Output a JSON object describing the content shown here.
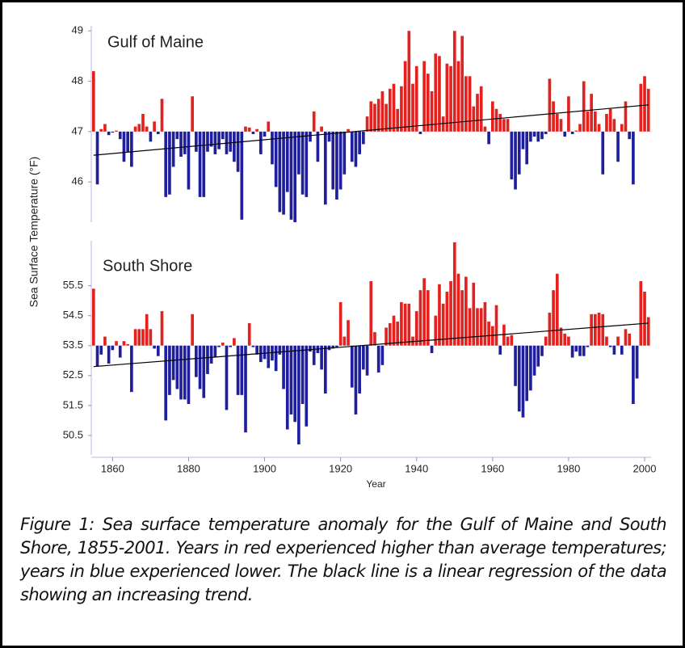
{
  "chart_data": [
    {
      "type": "bar",
      "title": "Gulf of Maine",
      "ylabel": "Sea Surface Temperature (°F)",
      "x": [
        1855,
        1856,
        1857,
        1858,
        1859,
        1860,
        1861,
        1862,
        1863,
        1864,
        1865,
        1866,
        1867,
        1868,
        1869,
        1870,
        1871,
        1872,
        1873,
        1874,
        1875,
        1876,
        1877,
        1878,
        1879,
        1880,
        1881,
        1882,
        1883,
        1884,
        1885,
        1886,
        1887,
        1888,
        1889,
        1890,
        1891,
        1892,
        1893,
        1894,
        1895,
        1896,
        1897,
        1898,
        1899,
        1900,
        1901,
        1902,
        1903,
        1904,
        1905,
        1906,
        1907,
        1908,
        1909,
        1910,
        1911,
        1912,
        1913,
        1914,
        1915,
        1916,
        1917,
        1918,
        1919,
        1920,
        1921,
        1922,
        1923,
        1924,
        1925,
        1926,
        1927,
        1928,
        1929,
        1930,
        1931,
        1932,
        1933,
        1934,
        1935,
        1936,
        1937,
        1938,
        1939,
        1940,
        1941,
        1942,
        1943,
        1944,
        1945,
        1946,
        1947,
        1948,
        1949,
        1950,
        1951,
        1952,
        1953,
        1954,
        1955,
        1956,
        1957,
        1958,
        1959,
        1960,
        1961,
        1962,
        1963,
        1964,
        1965,
        1966,
        1967,
        1968,
        1969,
        1970,
        1971,
        1972,
        1973,
        1974,
        1975,
        1976,
        1977,
        1978,
        1979,
        1980,
        1981,
        1982,
        1983,
        1984,
        1985,
        1986,
        1987,
        1988,
        1989,
        1990,
        1991,
        1992,
        1993,
        1994,
        1995,
        1996,
        1997,
        1998,
        1999,
        2000,
        2001
      ],
      "values": [
        48.2,
        45.95,
        47.05,
        47.15,
        46.93,
        46.98,
        47.02,
        46.85,
        46.4,
        46.6,
        46.3,
        47.1,
        47.15,
        47.35,
        47.1,
        46.8,
        47.2,
        46.95,
        47.65,
        45.7,
        45.75,
        46.3,
        46.85,
        46.5,
        46.55,
        45.85,
        47.7,
        46.6,
        45.7,
        45.7,
        46.6,
        46.7,
        46.55,
        46.65,
        46.85,
        46.55,
        46.6,
        46.4,
        46.2,
        45.25,
        47.1,
        47.08,
        46.95,
        47.05,
        46.55,
        46.9,
        47.2,
        46.35,
        45.9,
        45.4,
        45.35,
        45.8,
        45.25,
        45.2,
        46.15,
        45.75,
        45.7,
        46.8,
        47.4,
        46.4,
        47.1,
        45.55,
        46.8,
        45.85,
        45.65,
        45.85,
        46.15,
        47.05,
        46.4,
        46.3,
        46.55,
        46.75,
        47.3,
        47.6,
        47.55,
        47.65,
        47.8,
        47.55,
        47.85,
        47.95,
        47.45,
        47.9,
        48.4,
        49.0,
        47.95,
        48.3,
        46.95,
        48.4,
        48.15,
        47.8,
        48.55,
        48.5,
        47.3,
        48.35,
        48.3,
        49.0,
        48.4,
        48.9,
        48.1,
        48.1,
        47.5,
        47.75,
        47.9,
        47.1,
        46.75,
        47.6,
        47.45,
        47.35,
        47.25,
        47.25,
        46.05,
        45.85,
        46.15,
        46.65,
        46.35,
        46.8,
        46.9,
        46.8,
        46.85,
        46.95,
        48.05,
        47.6,
        47.35,
        47.25,
        46.9,
        47.7,
        46.95,
        47.02,
        47.15,
        48.0,
        47.4,
        47.75,
        47.4,
        47.15,
        46.15,
        47.35,
        47.45,
        47.25,
        46.4,
        47.15,
        47.6,
        46.85,
        45.95,
        47.0,
        47.95,
        48.1,
        47.85
      ],
      "baseline": 47,
      "colors": {
        "above": "#e3211f",
        "below": "#1f1f9e"
      },
      "trend": {
        "x": [
          1855,
          2001
        ],
        "values": [
          46.53,
          47.53
        ],
        "color": "#000000"
      },
      "xlim": [
        1854.4,
        2001.7
      ],
      "ylim": [
        45.2,
        49.1
      ],
      "yticks": [
        46,
        47,
        48,
        49
      ]
    },
    {
      "type": "bar",
      "title": "South Shore",
      "xlabel": "Year",
      "x": [
        1855,
        1856,
        1857,
        1858,
        1859,
        1860,
        1861,
        1862,
        1863,
        1864,
        1865,
        1866,
        1867,
        1868,
        1869,
        1870,
        1871,
        1872,
        1873,
        1874,
        1875,
        1876,
        1877,
        1878,
        1879,
        1880,
        1881,
        1882,
        1883,
        1884,
        1885,
        1886,
        1887,
        1888,
        1889,
        1890,
        1891,
        1892,
        1893,
        1894,
        1895,
        1896,
        1897,
        1898,
        1899,
        1900,
        1901,
        1902,
        1903,
        1904,
        1905,
        1906,
        1907,
        1908,
        1909,
        1910,
        1911,
        1912,
        1913,
        1914,
        1915,
        1916,
        1917,
        1918,
        1919,
        1920,
        1921,
        1922,
        1923,
        1924,
        1925,
        1926,
        1927,
        1928,
        1929,
        1930,
        1931,
        1932,
        1933,
        1934,
        1935,
        1936,
        1937,
        1938,
        1939,
        1940,
        1941,
        1942,
        1943,
        1944,
        1945,
        1946,
        1947,
        1948,
        1949,
        1950,
        1951,
        1952,
        1953,
        1954,
        1955,
        1956,
        1957,
        1958,
        1959,
        1960,
        1961,
        1962,
        1963,
        1964,
        1965,
        1966,
        1967,
        1968,
        1969,
        1970,
        1971,
        1972,
        1973,
        1974,
        1975,
        1976,
        1977,
        1978,
        1979,
        1980,
        1981,
        1982,
        1983,
        1984,
        1985,
        1986,
        1987,
        1988,
        1989,
        1990,
        1991,
        1992,
        1993,
        1994,
        1995,
        1996,
        1997,
        1998,
        1999,
        2000,
        2001
      ],
      "values": [
        55.4,
        52.8,
        53.2,
        53.8,
        52.9,
        53.35,
        53.65,
        53.1,
        53.65,
        53.55,
        51.95,
        54.05,
        54.05,
        54.05,
        54.55,
        54.05,
        53.4,
        53.15,
        54.65,
        51.0,
        51.85,
        52.35,
        52.05,
        51.7,
        51.7,
        51.55,
        54.55,
        52.45,
        52.05,
        51.75,
        52.55,
        52.9,
        53.1,
        53.45,
        53.6,
        51.35,
        53.45,
        53.75,
        51.85,
        51.85,
        50.6,
        54.25,
        53.45,
        53.2,
        52.95,
        53.05,
        52.75,
        53.0,
        52.65,
        53.2,
        52.05,
        50.7,
        51.2,
        50.95,
        50.2,
        51.55,
        50.8,
        53.3,
        52.85,
        53.25,
        52.7,
        51.9,
        53.35,
        53.4,
        53.45,
        54.95,
        53.8,
        54.35,
        52.1,
        51.2,
        51.9,
        52.7,
        52.5,
        55.65,
        53.95,
        52.6,
        52.85,
        54.1,
        54.25,
        54.5,
        54.3,
        54.95,
        54.9,
        54.9,
        53.8,
        54.65,
        55.35,
        55.75,
        55.35,
        53.25,
        54.5,
        55.55,
        54.9,
        55.3,
        55.65,
        56.95,
        55.9,
        55.35,
        55.8,
        54.75,
        55.6,
        54.75,
        54.75,
        54.95,
        54.3,
        54.15,
        54.85,
        53.2,
        54.2,
        53.8,
        53.85,
        52.15,
        51.3,
        51.1,
        51.65,
        52.0,
        52.5,
        52.8,
        53.15,
        53.8,
        54.6,
        55.35,
        55.9,
        54.1,
        53.9,
        53.8,
        53.1,
        53.3,
        53.15,
        53.15,
        53.45,
        54.55,
        54.55,
        54.6,
        54.55,
        53.8,
        53.45,
        53.2,
        53.8,
        53.2,
        54.05,
        53.9,
        51.55,
        52.4,
        55.65,
        55.3,
        54.45
      ],
      "baseline": 53.5,
      "colors": {
        "above": "#e3211f",
        "below": "#1f1f9e"
      },
      "trend": {
        "x": [
          1855,
          2001
        ],
        "values": [
          52.8,
          54.25
        ],
        "color": "#000000"
      },
      "xlim": [
        1854.4,
        2001.7
      ],
      "ylim": [
        49.85,
        57.0
      ],
      "yticks": [
        50.5,
        51.5,
        52.5,
        53.5,
        54.5,
        55.5
      ],
      "xticks": [
        1860,
        1880,
        1900,
        1920,
        1940,
        1960,
        1980,
        2000
      ]
    }
  ],
  "caption": "Figure 1: Sea surface temperature anomaly for the Gulf of Maine and South Shore, 1855-2001. Years in red experienced higher than average temperatures; years in blue experienced lower. The black line is a linear regression of the data showing an increasing trend."
}
